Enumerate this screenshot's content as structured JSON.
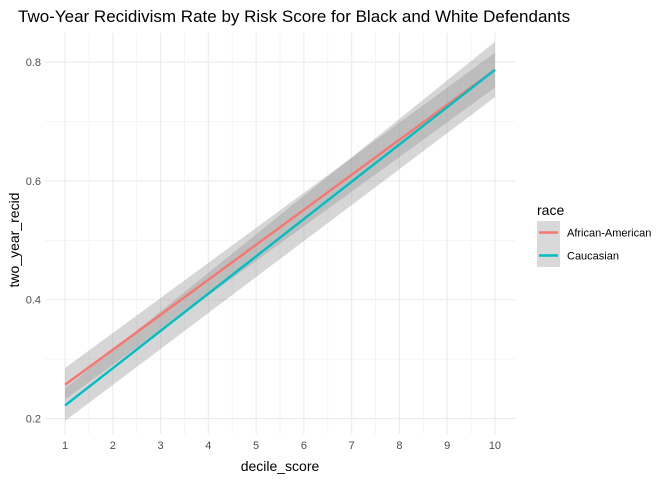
{
  "chart_data": {
    "type": "line",
    "title": "Two-Year Recidivism Rate by Risk Score for Black and White Defendants",
    "xlabel": "decile_score",
    "ylabel": "two_year_recid",
    "xlim": [
      0.58,
      10.42
    ],
    "ylim": [
      0.174,
      0.849
    ],
    "x_ticks": [
      1,
      2,
      3,
      4,
      5,
      6,
      7,
      8,
      9,
      10
    ],
    "y_ticks": [
      0.2,
      0.4,
      0.6,
      0.8
    ],
    "x_tick_labels": [
      "1",
      "2",
      "3",
      "4",
      "5",
      "6",
      "7",
      "8",
      "9",
      "10"
    ],
    "y_tick_labels": [
      "0.2",
      "0.4",
      "0.6",
      "0.8"
    ],
    "grid": true,
    "legend": {
      "title": "race",
      "position": "right"
    },
    "series": [
      {
        "name": "African-American",
        "color": "#f8766d",
        "x": [
          1,
          10
        ],
        "y": [
          0.257,
          0.787
        ],
        "ci_lower": [
          0.232,
          0.757
        ],
        "ci_upper": [
          0.285,
          0.816
        ]
      },
      {
        "name": "Caucasian",
        "color": "#00bfc4",
        "x": [
          1,
          10
        ],
        "y": [
          0.222,
          0.787
        ],
        "ci_lower": [
          0.196,
          0.741
        ],
        "ci_upper": [
          0.251,
          0.834
        ]
      }
    ]
  }
}
